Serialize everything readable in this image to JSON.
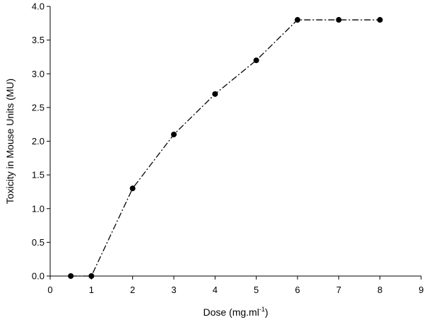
{
  "chart_data": {
    "type": "line",
    "title": "",
    "xlabel": "Dose (mg.ml",
    "xlabel_sup": "-1",
    "xlabel_suffix": ")",
    "ylabel": "Toxicity in Mouse Units (MU)",
    "xlim": [
      0,
      9
    ],
    "ylim": [
      0,
      4
    ],
    "x_ticks": [
      0,
      1,
      2,
      3,
      4,
      5,
      6,
      7,
      8,
      9
    ],
    "y_ticks": [
      0,
      0.5,
      1,
      1.5,
      2,
      2.5,
      3,
      3.5,
      4
    ],
    "y_tick_labels": [
      "0.0",
      "0.5",
      "1.0",
      "1.5",
      "2.0",
      "2.5",
      "3.0",
      "3.5",
      "4.0"
    ],
    "grid": false,
    "legend": "none",
    "line_style": "dash-dot",
    "marker": "filled-circle",
    "color": "#000000",
    "series": [
      {
        "x": [
          0.5,
          1,
          2,
          3,
          4,
          5,
          6,
          7,
          8
        ],
        "y": [
          0.0,
          0.0,
          1.3,
          2.1,
          2.7,
          3.2,
          3.8,
          3.8,
          3.8
        ]
      }
    ]
  }
}
